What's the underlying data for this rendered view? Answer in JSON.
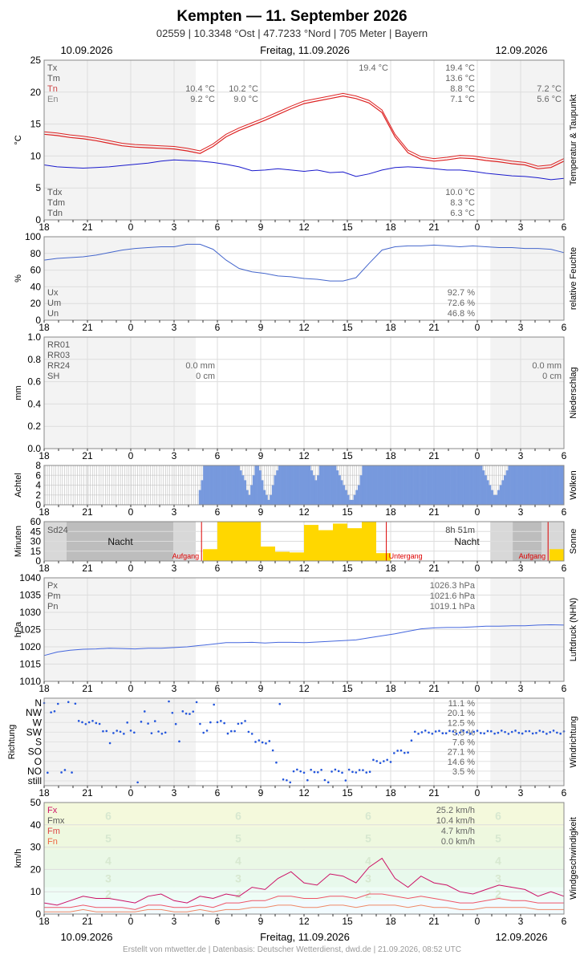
{
  "header": {
    "title": "Kempten  —  11. September 2026",
    "subtitle": "02559  |  10.3348 °Ost  |  47.7233 °Nord  |  705 Meter  |  Bayern",
    "date_left": "10.09.2026",
    "date_center": "Freitag, 11.09.2026",
    "date_right": "12.09.2026"
  },
  "footer": {
    "date_left": "10.09.2026",
    "date_center": "Freitag, 11.09.2026",
    "date_right": "12.09.2026",
    "credit": "Erstellt von mtwetter.de | Datenbasis: Deutscher Wetterdienst, dwd.de | 21.09.2026, 08:52 UTC"
  },
  "x_ticks": [
    "18",
    "21",
    "0",
    "3",
    "6",
    "9",
    "12",
    "15",
    "18",
    "21",
    "0",
    "3",
    "6"
  ],
  "colors": {
    "temp": "#dd2222",
    "dew": "#1a1acc",
    "humidity": "#4466cc",
    "pressure": "#4466dd",
    "clouds": "#7799dd",
    "sun": "#ffd700",
    "wind_fx": "#cc1166",
    "wind_fm": "#ee5566",
    "wind_fn": "#ee8866"
  },
  "chart_data": [
    {
      "id": "temperature",
      "type": "line",
      "ylabel": "°C",
      "side_label": "Temperatur & Taupunkt",
      "ylim": [
        0,
        25
      ],
      "yticks": [
        "0",
        "5",
        "10",
        "15",
        "20",
        "25"
      ],
      "legend_top": [
        {
          "k": "Tx",
          "day1": "",
          "day2": "19.4 °C",
          "day2_note": "19.4 °C",
          "day3": ""
        },
        {
          "k": "Tm",
          "day1": "",
          "day2": "13.6 °C",
          "day3": ""
        },
        {
          "k": "Tn",
          "day1": "10.4 °C",
          "day1b": "10.2 °C",
          "day2": "8.8 °C",
          "day3": "7.2 °C"
        },
        {
          "k": "En",
          "day1": "9.2 °C",
          "day1b": "9.0 °C",
          "day2": "7.1 °C",
          "day3": "5.6 °C"
        }
      ],
      "legend_bottom": [
        {
          "k": "Tdx",
          "v": "10.0 °C"
        },
        {
          "k": "Tdm",
          "v": "8.3 °C"
        },
        {
          "k": "Tdn",
          "v": "6.3 °C"
        }
      ],
      "series": [
        {
          "name": "T",
          "key": "t",
          "values": [
            13.4,
            13.2,
            12.9,
            12.7,
            12.4,
            12.0,
            11.6,
            11.4,
            11.3,
            11.2,
            11.1,
            10.8,
            10.4,
            11.5,
            13.0,
            14.0,
            14.8,
            15.6,
            16.5,
            17.4,
            18.2,
            18.6,
            19.0,
            19.4,
            19.0,
            18.3,
            16.8,
            13.0,
            10.5,
            9.5,
            9.2,
            9.4,
            9.7,
            9.6,
            9.3,
            9.1,
            8.8,
            8.6,
            8.0,
            8.2,
            9.2
          ]
        },
        {
          "name": "Td",
          "key": "td",
          "values": [
            8.6,
            8.3,
            8.2,
            8.1,
            8.2,
            8.3,
            8.5,
            8.7,
            8.9,
            9.2,
            9.4,
            9.3,
            9.2,
            9.0,
            8.7,
            8.3,
            7.7,
            7.8,
            8.0,
            7.8,
            7.6,
            7.8,
            7.4,
            7.5,
            6.8,
            7.2,
            7.8,
            8.2,
            8.3,
            8.2,
            8.0,
            7.8,
            7.8,
            7.6,
            7.3,
            7.1,
            6.9,
            6.8,
            6.6,
            6.3,
            6.5
          ]
        }
      ]
    },
    {
      "id": "humidity",
      "type": "line",
      "ylabel": "%",
      "side_label": "relative Feuchte",
      "ylim": [
        0,
        100
      ],
      "yticks": [
        "0",
        "20",
        "40",
        "60",
        "80",
        "100"
      ],
      "legend": [
        {
          "k": "Ux",
          "v": "92.7 %"
        },
        {
          "k": "Um",
          "v": "72.6 %"
        },
        {
          "k": "Un",
          "v": "46.8 %"
        }
      ],
      "series": [
        {
          "name": "U",
          "values": [
            72,
            74,
            75,
            76,
            78,
            81,
            84,
            86,
            87,
            88,
            88,
            91,
            91,
            85,
            72,
            62,
            58,
            56,
            53,
            52,
            50,
            49,
            47,
            47,
            51,
            68,
            84,
            88,
            89,
            89,
            90,
            89,
            88,
            89,
            88,
            87,
            87,
            86,
            86,
            85,
            81
          ]
        }
      ]
    },
    {
      "id": "precipitation",
      "type": "bar",
      "ylabel": "mm",
      "side_label": "Niederschlag",
      "ylim": [
        0,
        1.0
      ],
      "yticks": [
        "0.0",
        "0.2",
        "0.4",
        "0.6",
        "0.8",
        "1.0"
      ],
      "legend": [
        {
          "k": "RR01",
          "day1": "",
          "day3": ""
        },
        {
          "k": "RR03",
          "day1": "",
          "day3": ""
        },
        {
          "k": "RR24",
          "day1": "0.0 mm",
          "day3": "0.0 mm"
        },
        {
          "k": "SH",
          "day1": "0 cm",
          "day3": "0 cm"
        }
      ],
      "values": []
    },
    {
      "id": "clouds",
      "type": "bar",
      "ylabel": "Achtel",
      "side_label": "Wolken",
      "ylim": [
        0,
        8
      ],
      "yticks": [
        "0",
        "2",
        "4",
        "6",
        "8"
      ],
      "values": [
        0,
        0,
        0,
        0,
        0,
        0,
        0,
        0,
        0,
        0,
        0,
        0,
        0,
        0,
        0,
        0,
        0,
        0,
        0,
        0,
        0,
        0,
        0,
        0,
        0,
        0,
        0,
        0,
        0,
        0,
        0,
        0,
        0,
        0,
        0,
        0,
        0,
        0,
        0,
        0,
        0,
        0,
        0,
        0,
        0,
        0,
        0,
        0,
        0,
        0,
        0,
        0,
        0,
        0,
        0,
        0,
        0,
        0,
        0,
        0,
        0,
        0,
        0,
        0,
        0,
        0,
        0,
        0,
        0,
        0,
        0,
        0,
        3,
        5,
        8,
        8,
        8,
        8,
        8,
        8,
        8,
        8,
        8,
        8,
        8,
        8,
        8,
        8,
        8,
        8,
        8,
        7,
        6,
        5,
        3,
        2,
        4,
        6,
        8,
        8,
        7,
        5,
        3,
        2,
        1,
        2,
        4,
        6,
        7,
        8,
        8,
        8,
        8,
        8,
        8,
        8,
        8,
        8,
        8,
        8,
        8,
        8,
        8,
        8,
        7,
        6,
        5,
        6,
        8,
        8,
        8,
        8,
        8,
        8,
        8,
        8,
        7,
        6,
        5,
        4,
        3,
        2,
        1,
        1,
        2,
        3,
        4,
        6,
        8,
        8,
        8,
        8,
        8,
        8,
        8,
        8,
        8,
        8,
        8,
        8,
        8,
        8,
        8,
        8,
        8,
        8,
        8,
        8,
        8,
        8,
        8,
        8,
        8,
        8,
        8,
        8,
        8,
        8,
        8,
        8,
        8,
        8,
        8,
        8,
        8,
        8,
        8,
        8,
        8,
        8,
        8,
        8,
        8,
        8,
        8,
        8,
        8,
        8,
        8,
        8,
        8,
        8,
        8,
        8,
        7,
        6,
        5,
        4,
        3,
        2,
        2,
        3,
        4,
        5,
        6,
        7,
        8,
        8,
        8,
        8,
        8,
        8,
        8,
        8,
        8,
        8,
        8,
        8,
        8,
        8,
        8,
        8,
        8,
        8,
        8,
        8,
        8,
        8,
        8,
        8,
        8,
        8
      ]
    },
    {
      "id": "sunshine",
      "type": "bar",
      "ylabel": "Minuten",
      "side_label": "Sonne",
      "ylim": [
        0,
        60
      ],
      "yticks": [
        "0",
        "15",
        "30",
        "45",
        "60"
      ],
      "legend": [
        {
          "k": "Sd24",
          "day2": "8h 51m"
        }
      ],
      "night_label": "Nacht",
      "sunrise_label": "Aufgang",
      "sunset_label": "Untergang",
      "values": [
        18,
        60,
        60,
        60,
        22,
        14,
        13,
        55,
        47,
        57,
        50,
        60,
        12
      ]
    },
    {
      "id": "pressure",
      "type": "line",
      "ylabel": "hPa",
      "side_label": "Luftdruck (NHN)",
      "ylim": [
        1010,
        1040
      ],
      "yticks": [
        "1010",
        "1015",
        "1020",
        "1025",
        "1030",
        "1035",
        "1040"
      ],
      "legend": [
        {
          "k": "Px",
          "v": "1026.3 hPa"
        },
        {
          "k": "Pm",
          "v": "1021.6 hPa"
        },
        {
          "k": "Pn",
          "v": "1019.1 hPa"
        }
      ],
      "series": [
        {
          "name": "P",
          "values": [
            1017.5,
            1018.5,
            1019.0,
            1019.3,
            1019.4,
            1019.6,
            1019.5,
            1019.4,
            1019.6,
            1019.6,
            1019.8,
            1020.0,
            1020.4,
            1020.8,
            1021.2,
            1021.2,
            1021.3,
            1021.1,
            1021.3,
            1021.3,
            1021.2,
            1021.4,
            1021.6,
            1021.8,
            1022.0,
            1022.6,
            1023.2,
            1023.8,
            1024.5,
            1025.2,
            1025.5,
            1025.6,
            1025.6,
            1025.8,
            1026.0,
            1026.0,
            1026.1,
            1026.1,
            1026.3,
            1026.4,
            1026.3
          ]
        }
      ]
    },
    {
      "id": "wind_direction",
      "type": "scatter",
      "ylabel": "Richtung",
      "side_label": "Windrichtung",
      "categories": [
        "N",
        "NW",
        "W",
        "SW",
        "S",
        "SO",
        "O",
        "NO",
        "still"
      ],
      "legend_values": [
        "11.1 %",
        "20.1 %",
        "12.5 %",
        "3.5 %",
        "7.6 %",
        "27.1 %",
        "14.6 %",
        "3.5 %",
        ""
      ],
      "values": [
        8,
        1,
        7,
        7,
        8,
        1,
        1,
        8,
        1,
        8,
        6,
        6,
        6,
        6,
        6,
        6,
        6,
        5,
        5,
        4,
        5,
        5,
        5,
        5,
        6,
        5,
        5,
        0,
        6,
        7,
        6,
        5,
        6,
        5,
        5,
        5,
        8,
        7,
        6,
        4,
        7,
        7,
        7,
        7,
        8,
        6,
        5,
        5,
        6,
        8,
        6,
        6,
        6,
        5,
        5,
        5,
        6,
        6,
        6,
        5,
        5,
        4,
        4,
        4,
        4,
        4,
        3,
        2,
        8,
        0,
        0,
        0,
        1,
        1,
        1,
        1,
        0,
        1,
        1,
        1,
        1,
        0,
        0,
        1,
        1,
        1,
        1,
        0,
        1,
        1,
        1,
        1,
        1,
        1,
        1,
        2,
        2,
        2,
        2,
        2,
        2,
        3,
        3,
        3,
        3,
        3,
        4,
        5,
        5,
        5,
        5,
        5,
        5,
        5,
        5,
        5,
        5,
        5,
        5,
        5,
        5,
        5,
        5,
        5,
        5,
        5,
        5,
        5,
        5,
        5,
        5,
        5,
        5,
        5,
        5,
        5,
        5,
        5,
        5,
        5,
        5,
        5,
        5,
        5,
        5,
        5,
        5,
        5,
        5,
        5,
        5
      ]
    },
    {
      "id": "wind_speed",
      "type": "line",
      "ylabel": "km/h",
      "side_label": "Windgeschwindigkeit",
      "ylim": [
        0,
        50
      ],
      "yticks": [
        "0",
        "10",
        "20",
        "30",
        "40",
        "50"
      ],
      "beaufort_labels": [
        "2",
        "3",
        "4",
        "5",
        "6"
      ],
      "legend": [
        {
          "k": "Fx",
          "v": "25.2 km/h"
        },
        {
          "k": "Fmx",
          "v": "10.4 km/h"
        },
        {
          "k": "Fm",
          "v": "4.7 km/h"
        },
        {
          "k": "Fn",
          "v": "0.0 km/h"
        }
      ],
      "series": [
        {
          "name": "Fx",
          "values": [
            5,
            4,
            6,
            8,
            7,
            7,
            6,
            5,
            8,
            9,
            6,
            5,
            8,
            7,
            9,
            8,
            12,
            11,
            16,
            19,
            14,
            13,
            18,
            17,
            14,
            21,
            25,
            16,
            12,
            17,
            14,
            13,
            10,
            9,
            11,
            13,
            12,
            11,
            8,
            10,
            8
          ]
        },
        {
          "name": "Fm",
          "values": [
            3,
            3,
            3,
            4,
            3,
            3,
            3,
            2,
            4,
            4,
            3,
            3,
            4,
            3,
            5,
            5,
            6,
            6,
            8,
            8,
            7,
            7,
            8,
            8,
            7,
            9,
            9,
            8,
            7,
            8,
            7,
            6,
            5,
            5,
            6,
            7,
            6,
            6,
            5,
            5,
            5
          ]
        },
        {
          "name": "Fn",
          "values": [
            1,
            1,
            1,
            2,
            1,
            1,
            1,
            1,
            2,
            2,
            1,
            1,
            2,
            1,
            2,
            2,
            3,
            3,
            4,
            4,
            3,
            3,
            4,
            4,
            3,
            4,
            4,
            4,
            3,
            4,
            3,
            3,
            2,
            2,
            3,
            3,
            3,
            3,
            2,
            2,
            2
          ]
        }
      ]
    }
  ]
}
